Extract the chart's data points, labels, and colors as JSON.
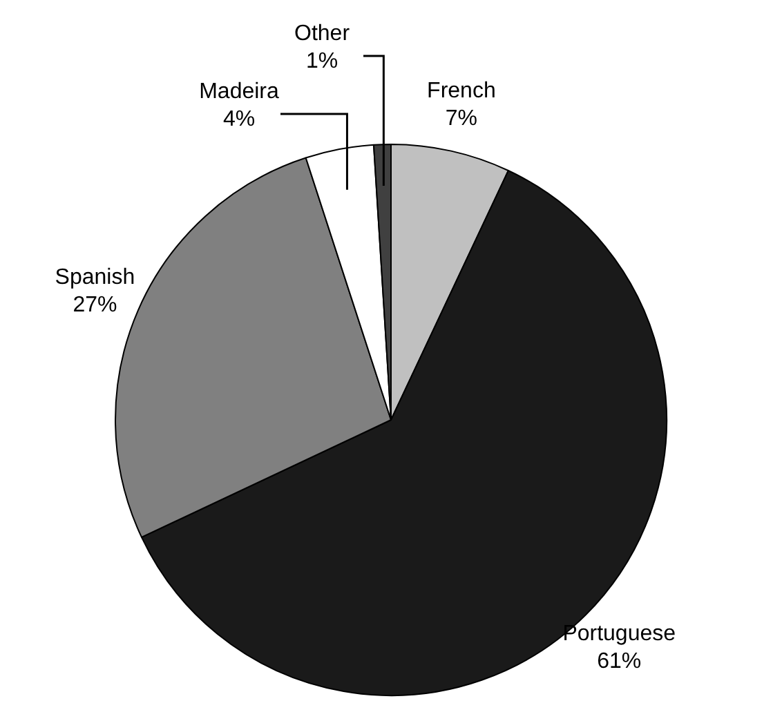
{
  "chart_data": {
    "type": "pie",
    "categories": [
      "French",
      "Portuguese",
      "Spanish",
      "Madeira",
      "Other"
    ],
    "values": [
      7,
      61,
      27,
      4,
      1
    ],
    "value_labels": [
      "7%",
      "61%",
      "27%",
      "4%",
      "1%"
    ],
    "colors": [
      "#c0c0c0",
      "#1a1a1a",
      "#808080",
      "#ffffff",
      "#404040"
    ],
    "legend": false
  }
}
